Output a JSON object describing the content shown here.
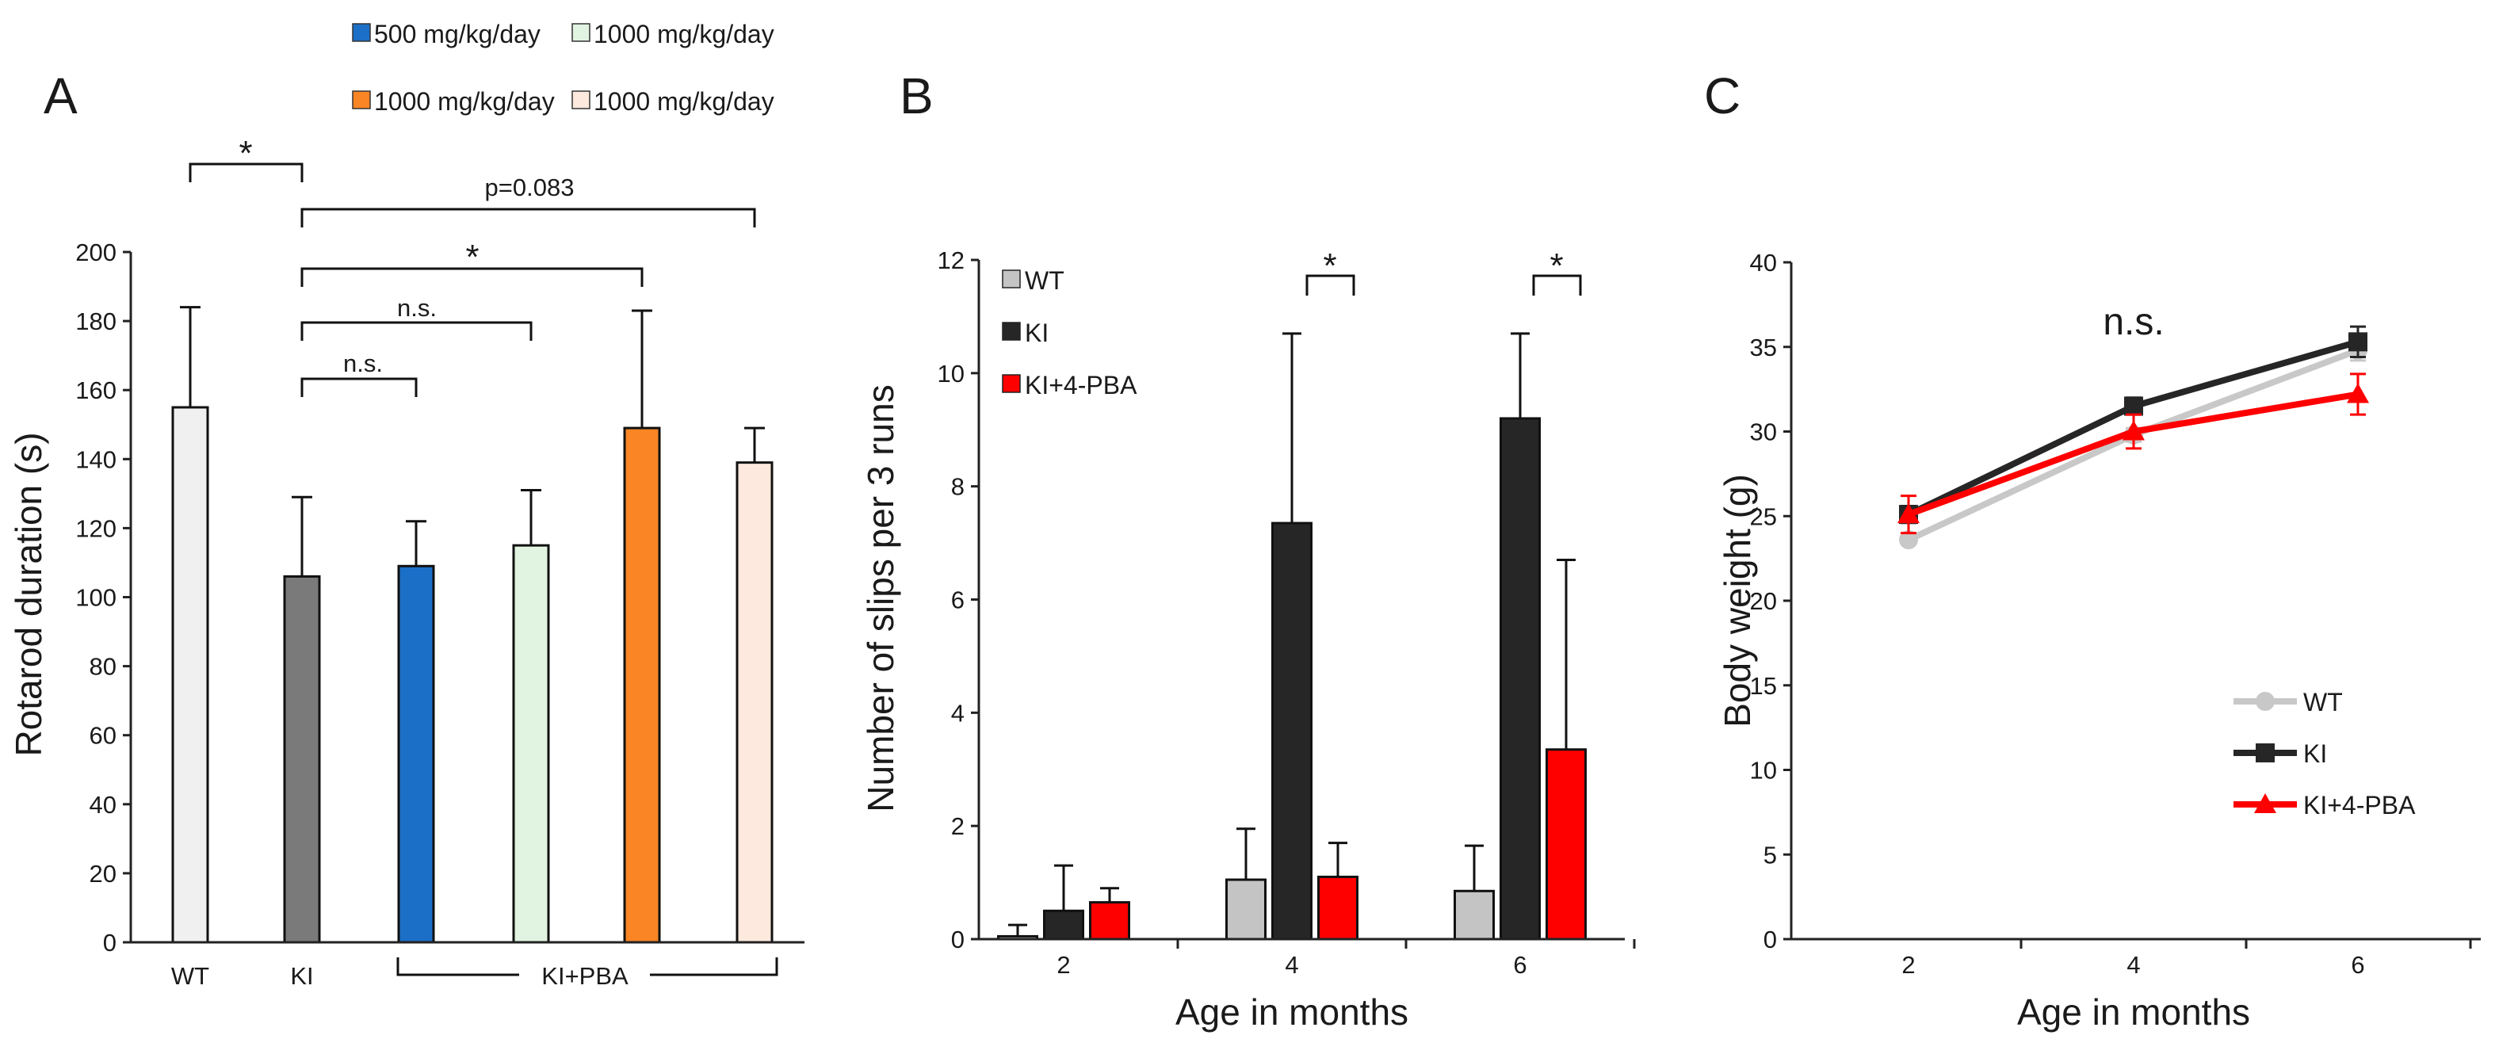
{
  "chart_data": [
    {
      "type": "bar",
      "panel": "A",
      "ylabel": "Rotarod duration (s)",
      "ylim": [
        0,
        200
      ],
      "yticks": [
        0,
        20,
        40,
        60,
        80,
        100,
        120,
        140,
        160,
        180,
        200
      ],
      "categories": [
        "WT",
        "KI",
        "",
        "",
        "",
        ""
      ],
      "group_label": "KI+PBA",
      "values": [
        155,
        106,
        109,
        115,
        149,
        139
      ],
      "errors": [
        29,
        23,
        13,
        16,
        34,
        10
      ],
      "colors": [
        "#f0f0f0",
        "#7a7a7a",
        "#1c6fc6",
        "#e1f3e1",
        "#f98525",
        "#fde9dd"
      ],
      "legend": [
        {
          "label": "500 mg/kg/day",
          "color": "#1c6fc6"
        },
        {
          "label": "1000 mg/kg/day",
          "color": "#e1f3e1"
        },
        {
          "label": "1000 mg/kg/day",
          "color": "#f98525"
        },
        {
          "label": "1000 mg/kg/day",
          "color": "#fde9dd"
        }
      ],
      "annotations": {
        "wt_ki": "*",
        "ki_pba4": "*",
        "ki_pba1": "n.s.",
        "ki_pba2": "n.s.",
        "ki_pba5": "p=0.083"
      }
    },
    {
      "type": "bar",
      "panel": "B",
      "xlabel": "Age in months",
      "ylabel": "Number of slips per 3 runs",
      "ylim": [
        0,
        12
      ],
      "yticks": [
        0,
        2,
        4,
        6,
        8,
        10,
        12
      ],
      "categories": [
        "2",
        "4",
        "6"
      ],
      "series": [
        {
          "name": "WT",
          "color": "#c4c4c4",
          "values": [
            0.05,
            1.05,
            0.85
          ],
          "errors": [
            0.2,
            0.9,
            0.8
          ]
        },
        {
          "name": "KI",
          "color": "#262626",
          "values": [
            0.5,
            7.35,
            9.2
          ],
          "errors": [
            0.8,
            3.35,
            1.5
          ]
        },
        {
          "name": "KI+4-PBA",
          "color": "#ff0000",
          "values": [
            0.65,
            1.1,
            3.35
          ],
          "errors": [
            0.25,
            0.6,
            3.35
          ]
        }
      ],
      "annotations": {
        "month4": "*",
        "month6": "*"
      }
    },
    {
      "type": "line",
      "panel": "C",
      "xlabel": "Age in months",
      "ylabel": "Body weight (g)",
      "ylim": [
        0,
        40
      ],
      "yticks": [
        0,
        5,
        10,
        15,
        20,
        25,
        30,
        35,
        40
      ],
      "x": [
        2,
        4,
        6
      ],
      "annotation": "n.s.",
      "series": [
        {
          "name": "WT",
          "color": "#c8c8c8",
          "marker": "circle",
          "values": [
            23.6,
            29.8,
            34.8
          ],
          "errors": [
            0,
            0.4,
            0.6
          ]
        },
        {
          "name": "KI",
          "color": "#262626",
          "marker": "square",
          "values": [
            25.1,
            31.5,
            35.3
          ],
          "errors": [
            0.5,
            0.5,
            0.9
          ]
        },
        {
          "name": "KI+4-PBA",
          "color": "#ff0000",
          "marker": "triangle",
          "values": [
            25.1,
            30.0,
            32.2
          ],
          "errors": [
            1.1,
            1.0,
            1.2
          ]
        }
      ]
    }
  ]
}
